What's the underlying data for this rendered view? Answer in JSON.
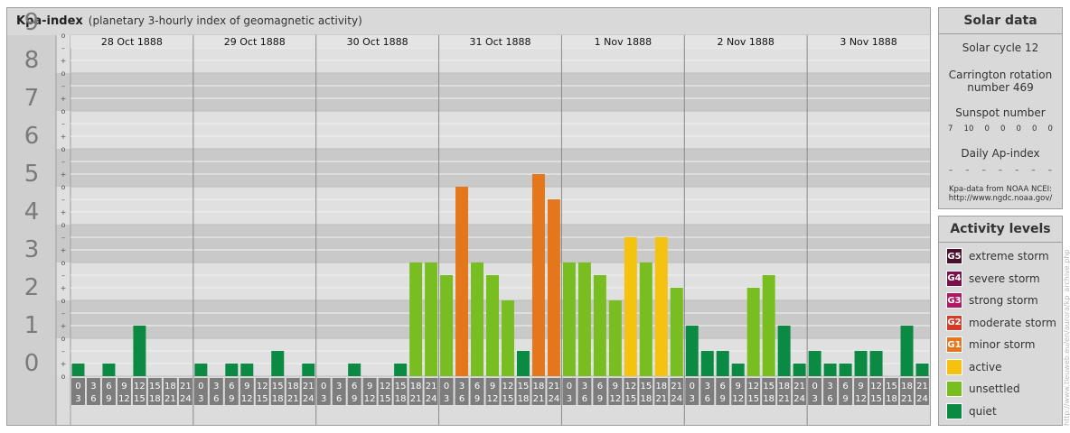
{
  "header": {
    "title": "Kpa-index",
    "subtitle": "(planetary 3-hourly index of geomagnetic activity)"
  },
  "chart_data": {
    "type": "bar",
    "ylim": [
      0,
      9
    ],
    "y_ticks": [
      "0",
      "1",
      "2",
      "3",
      "4",
      "5",
      "6",
      "7",
      "8",
      "9"
    ],
    "sub_ticks": [
      "o",
      "+",
      "–"
    ],
    "days": [
      "28 Oct 1888",
      "29 Oct 1888",
      "30 Oct 1888",
      "31 Oct 1888",
      "1 Nov 1888",
      "2 Nov 1888",
      "3 Nov 1888"
    ],
    "hour_start": [
      "0",
      "3",
      "6",
      "9",
      "12",
      "15",
      "18",
      "21"
    ],
    "hour_end": [
      "3",
      "6",
      "9",
      "12",
      "15",
      "18",
      "21",
      "24"
    ],
    "values": [
      [
        0.333,
        0,
        0.333,
        0,
        1.333,
        0,
        0,
        0
      ],
      [
        0.333,
        0,
        0.333,
        0.333,
        0,
        0.667,
        0,
        0.333
      ],
      [
        0,
        0,
        0.333,
        0,
        0,
        0.333,
        3,
        3
      ],
      [
        2.667,
        5,
        3,
        2.667,
        2,
        0.667,
        5.333,
        4.667
      ],
      [
        3,
        3,
        2.667,
        2,
        3.667,
        3,
        3.667,
        2.333
      ],
      [
        1.333,
        0.667,
        0.667,
        0.333,
        2.333,
        2.667,
        1.333,
        0.333
      ],
      [
        0.667,
        0.333,
        0.333,
        0.667,
        0.667,
        0,
        1.333,
        0.333
      ]
    ],
    "colors": {
      "quiet": "#0a8a43",
      "unsettled": "#78be21",
      "active": "#f5c210",
      "minor": "#e4761b"
    }
  },
  "solar": {
    "title": "Solar data",
    "cycle": "Solar cycle 12",
    "carrington_line1": "Carrington rotation",
    "carrington_line2": "number 469",
    "sunspot_label": "Sunspot number",
    "sunspot_values": [
      "7",
      "10",
      "0",
      "0",
      "0",
      "0",
      "0"
    ],
    "ap_label": "Daily Ap-index",
    "ap_values": [
      "–",
      "–",
      "–",
      "–",
      "–",
      "–",
      "–"
    ],
    "source_line1": "Kpa-data from NOAA NCEI:",
    "source_line2": "http://www.ngdc.noaa.gov/"
  },
  "levels": {
    "title": "Activity levels",
    "items": [
      {
        "badge": "G5",
        "label": "extreme storm",
        "color": "#4a0f2c"
      },
      {
        "badge": "G4",
        "label": "severe storm",
        "color": "#7b1148"
      },
      {
        "badge": "G3",
        "label": "strong storm",
        "color": "#b0185f"
      },
      {
        "badge": "G2",
        "label": "moderate storm",
        "color": "#d33d28"
      },
      {
        "badge": "G1",
        "label": "minor storm",
        "color": "#e4761b"
      },
      {
        "badge": "",
        "label": "active",
        "color": "#f5c210"
      },
      {
        "badge": "",
        "label": "unsettled",
        "color": "#78be21"
      },
      {
        "badge": "",
        "label": "quiet",
        "color": "#0a8a43"
      }
    ]
  },
  "watermark": "http://www.tieuweb.eu/en/aurora/kp_archive.php"
}
